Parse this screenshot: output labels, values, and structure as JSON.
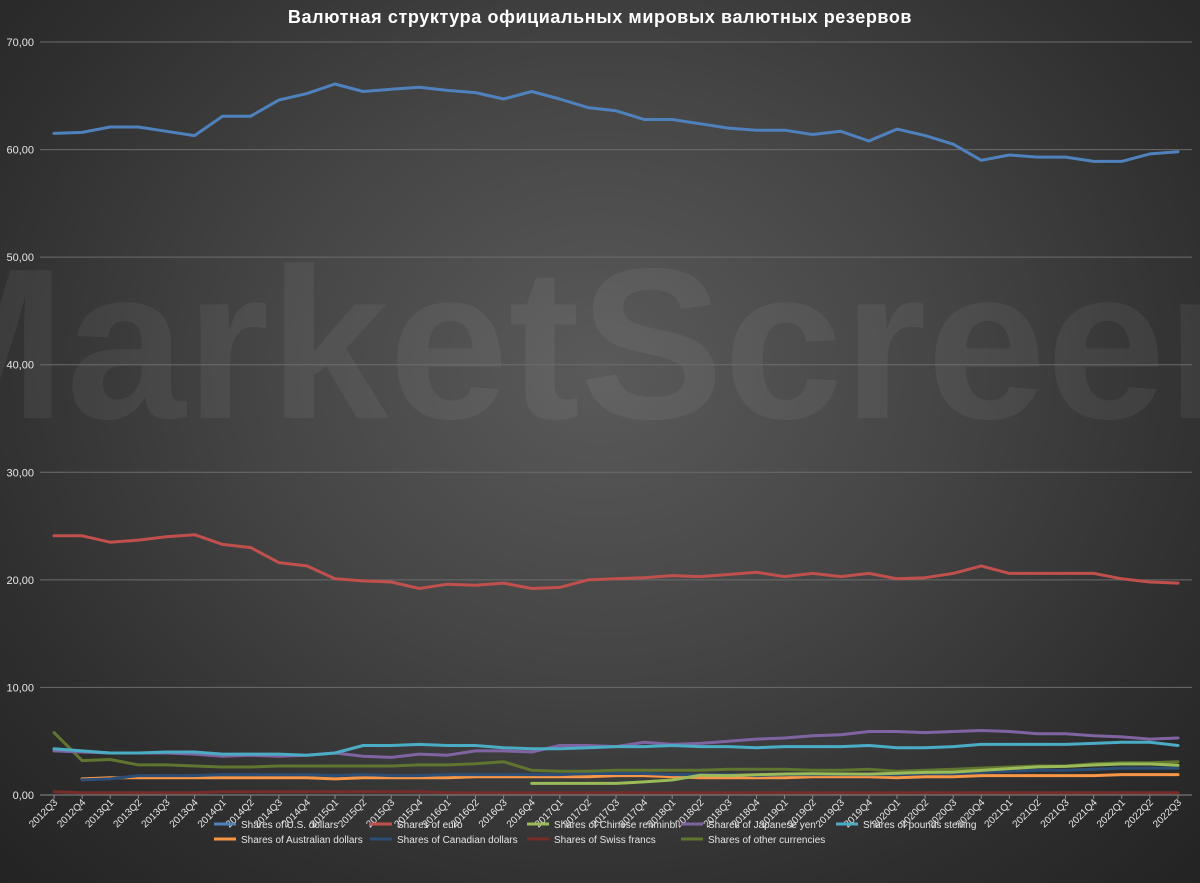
{
  "chart_data": {
    "type": "line",
    "title": "Валютная структура официальных мировых валютных резервов",
    "watermark": "MarketScreen",
    "ylim": [
      0,
      70
    ],
    "yticks": [
      "0,00",
      "10,00",
      "20,00",
      "30,00",
      "40,00",
      "50,00",
      "60,00",
      "70,00"
    ],
    "grid": true,
    "legend_position": "bottom",
    "categories": [
      "2012Q3",
      "2012Q4",
      "2013Q1",
      "2013Q2",
      "2013Q3",
      "2013Q4",
      "2014Q1",
      "2014Q2",
      "2014Q3",
      "2014Q4",
      "2015Q1",
      "2015Q2",
      "2015Q3",
      "2015Q4",
      "2016Q1",
      "2016Q2",
      "2016Q3",
      "2016Q4",
      "2017Q1",
      "2017Q2",
      "2017Q3",
      "2017Q4",
      "2018Q1",
      "2018Q2",
      "2018Q3",
      "2018Q4",
      "2019Q1",
      "2019Q2",
      "2019Q3",
      "2019Q4",
      "2020Q1",
      "2020Q2",
      "2020Q3",
      "2020Q4",
      "2021Q1",
      "2021Q2",
      "2021Q3",
      "2021Q4",
      "2022Q1",
      "2022Q2",
      "2022Q3"
    ],
    "series": [
      {
        "name": "Shares of U.S. dollars",
        "color": "#4f81bd",
        "values": [
          61.5,
          61.6,
          62.1,
          62.1,
          61.7,
          61.3,
          63.1,
          63.1,
          64.6,
          65.2,
          66.1,
          65.4,
          65.6,
          65.8,
          65.5,
          65.3,
          64.7,
          65.4,
          64.7,
          63.9,
          63.6,
          62.8,
          62.8,
          62.4,
          62.0,
          61.8,
          61.8,
          61.4,
          61.7,
          60.8,
          61.9,
          61.3,
          60.5,
          59.0,
          59.5,
          59.3,
          59.3,
          58.9,
          58.9,
          59.6,
          59.8
        ]
      },
      {
        "name": "Shares of euro",
        "color": "#c0504d",
        "values": [
          24.1,
          24.1,
          23.5,
          23.7,
          24.0,
          24.2,
          23.3,
          23.0,
          21.6,
          21.3,
          20.1,
          19.9,
          19.8,
          19.2,
          19.6,
          19.5,
          19.7,
          19.2,
          19.3,
          20.0,
          20.1,
          20.2,
          20.4,
          20.3,
          20.5,
          20.7,
          20.3,
          20.6,
          20.3,
          20.6,
          20.1,
          20.2,
          20.6,
          21.3,
          20.6,
          20.6,
          20.6,
          20.6,
          20.1,
          19.8,
          19.7
        ]
      },
      {
        "name": "Shares of Chinese renminbi",
        "color": "#9bbb59",
        "values": [
          null,
          null,
          null,
          null,
          null,
          null,
          null,
          null,
          null,
          null,
          null,
          null,
          null,
          null,
          null,
          null,
          null,
          1.08,
          1.08,
          1.08,
          1.08,
          1.22,
          1.39,
          1.84,
          1.8,
          1.89,
          1.95,
          1.97,
          1.95,
          1.94,
          2.02,
          2.1,
          2.13,
          2.29,
          2.45,
          2.61,
          2.66,
          2.79,
          2.88,
          2.88,
          2.76
        ]
      },
      {
        "name": "Shares of Japanese yen",
        "color": "#8064a2",
        "values": [
          4.1,
          4.0,
          3.9,
          3.9,
          3.9,
          3.8,
          3.6,
          3.7,
          3.6,
          3.7,
          3.9,
          3.6,
          3.5,
          3.8,
          3.7,
          4.1,
          4.1,
          4.0,
          4.6,
          4.6,
          4.5,
          4.9,
          4.7,
          4.8,
          5.0,
          5.2,
          5.3,
          5.5,
          5.6,
          5.9,
          5.9,
          5.8,
          5.9,
          6.0,
          5.9,
          5.7,
          5.7,
          5.5,
          5.4,
          5.2,
          5.3
        ]
      },
      {
        "name": "Shares of pounds sterling",
        "color": "#4bacc6",
        "values": [
          4.3,
          4.1,
          3.9,
          3.9,
          4.0,
          4.0,
          3.8,
          3.8,
          3.8,
          3.7,
          3.9,
          4.6,
          4.6,
          4.7,
          4.6,
          4.6,
          4.4,
          4.3,
          4.3,
          4.4,
          4.5,
          4.5,
          4.6,
          4.5,
          4.5,
          4.4,
          4.5,
          4.5,
          4.5,
          4.6,
          4.4,
          4.4,
          4.5,
          4.7,
          4.7,
          4.7,
          4.7,
          4.8,
          4.9,
          4.9,
          4.6
        ]
      },
      {
        "name": "Shares of Australian dollars",
        "color": "#f79646",
        "values": [
          null,
          1.5,
          1.6,
          1.6,
          1.6,
          1.6,
          1.6,
          1.6,
          1.6,
          1.6,
          1.5,
          1.6,
          1.6,
          1.6,
          1.6,
          1.7,
          1.7,
          1.7,
          1.7,
          1.7,
          1.8,
          1.8,
          1.7,
          1.6,
          1.6,
          1.6,
          1.6,
          1.7,
          1.7,
          1.7,
          1.6,
          1.7,
          1.7,
          1.8,
          1.8,
          1.8,
          1.8,
          1.8,
          1.9,
          1.9,
          1.9
        ]
      },
      {
        "name": "Shares of Canadian dollars",
        "color": "#2c4d75",
        "values": [
          null,
          1.4,
          1.5,
          1.8,
          1.8,
          1.8,
          1.9,
          1.9,
          1.9,
          1.9,
          1.8,
          1.9,
          1.8,
          1.8,
          1.9,
          1.9,
          1.9,
          1.9,
          1.9,
          2.0,
          2.0,
          2.0,
          1.9,
          1.9,
          1.9,
          1.8,
          1.9,
          1.9,
          1.9,
          1.9,
          1.9,
          2.0,
          2.0,
          2.1,
          2.2,
          2.3,
          2.3,
          2.4,
          2.5,
          2.5,
          2.5
        ]
      },
      {
        "name": "Shares of Swiss francs",
        "color": "#772c2a",
        "values": [
          0.3,
          0.2,
          0.2,
          0.2,
          0.2,
          0.2,
          0.3,
          0.3,
          0.3,
          0.3,
          0.3,
          0.3,
          0.3,
          0.3,
          0.2,
          0.2,
          0.2,
          0.2,
          0.2,
          0.2,
          0.2,
          0.2,
          0.2,
          0.2,
          0.2,
          0.2,
          0.2,
          0.2,
          0.2,
          0.2,
          0.2,
          0.2,
          0.2,
          0.2,
          0.2,
          0.2,
          0.2,
          0.2,
          0.2,
          0.2,
          0.2
        ]
      },
      {
        "name": "Shares of other currencies",
        "color": "#5f7530",
        "values": [
          5.8,
          3.2,
          3.3,
          2.8,
          2.8,
          2.7,
          2.6,
          2.6,
          2.7,
          2.7,
          2.7,
          2.7,
          2.7,
          2.8,
          2.8,
          2.9,
          3.1,
          2.3,
          2.2,
          2.2,
          2.3,
          2.3,
          2.3,
          2.3,
          2.4,
          2.4,
          2.4,
          2.3,
          2.3,
          2.4,
          2.2,
          2.3,
          2.4,
          2.5,
          2.6,
          2.7,
          2.7,
          2.9,
          3.0,
          3.0,
          3.1
        ]
      }
    ]
  }
}
